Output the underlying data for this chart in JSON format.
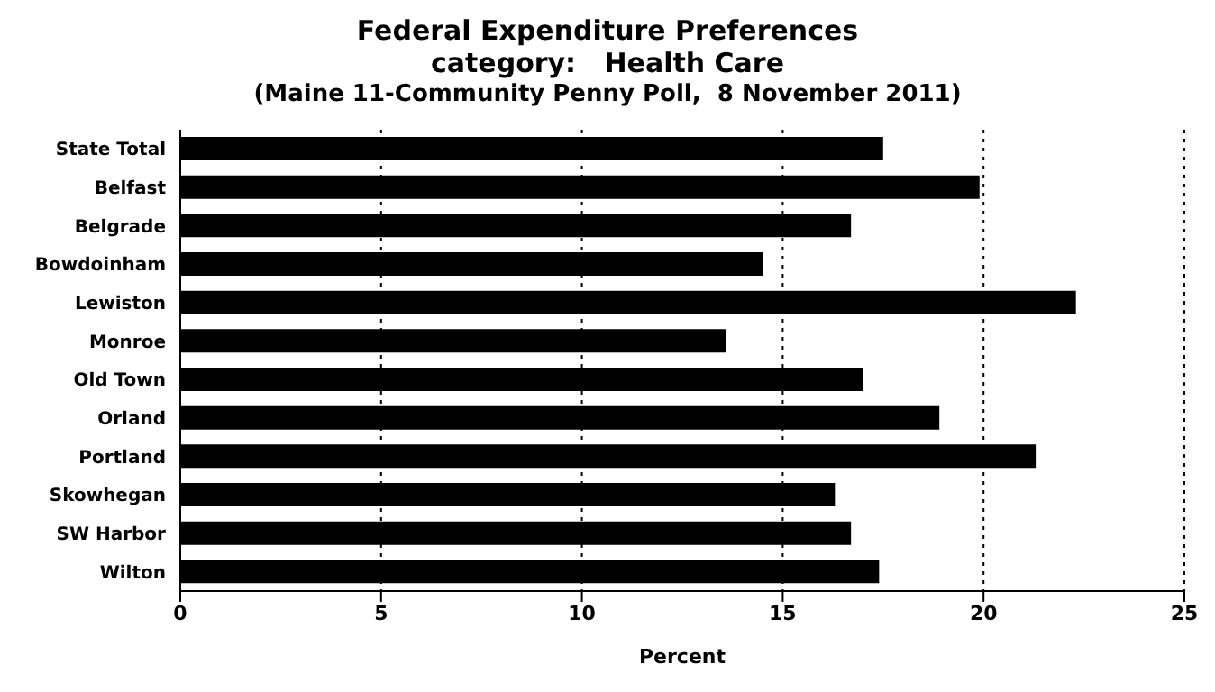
{
  "chart_data": {
    "type": "bar",
    "orientation": "horizontal",
    "title": "Federal Expenditure Preferences",
    "subtitle": "category:   Health Care",
    "annotations": [
      "(Maine 11-Community Penny Poll,  8 November 2011)"
    ],
    "categories": [
      "State Total",
      "Belfast",
      "Belgrade",
      "Bowdoinham",
      "Lewiston",
      "Monroe",
      "Old Town",
      "Orland",
      "Portland",
      "Skowhegan",
      "SW Harbor",
      "Wilton"
    ],
    "values": [
      17.5,
      19.9,
      16.7,
      14.5,
      22.3,
      13.6,
      17.0,
      18.9,
      21.3,
      16.3,
      16.7,
      17.4
    ],
    "color": "#000000",
    "xlabel": "Percent",
    "xlim": [
      0,
      25
    ],
    "xticks": [
      0,
      5,
      10,
      15,
      20,
      25
    ],
    "grid": "x",
    "legend": false
  }
}
